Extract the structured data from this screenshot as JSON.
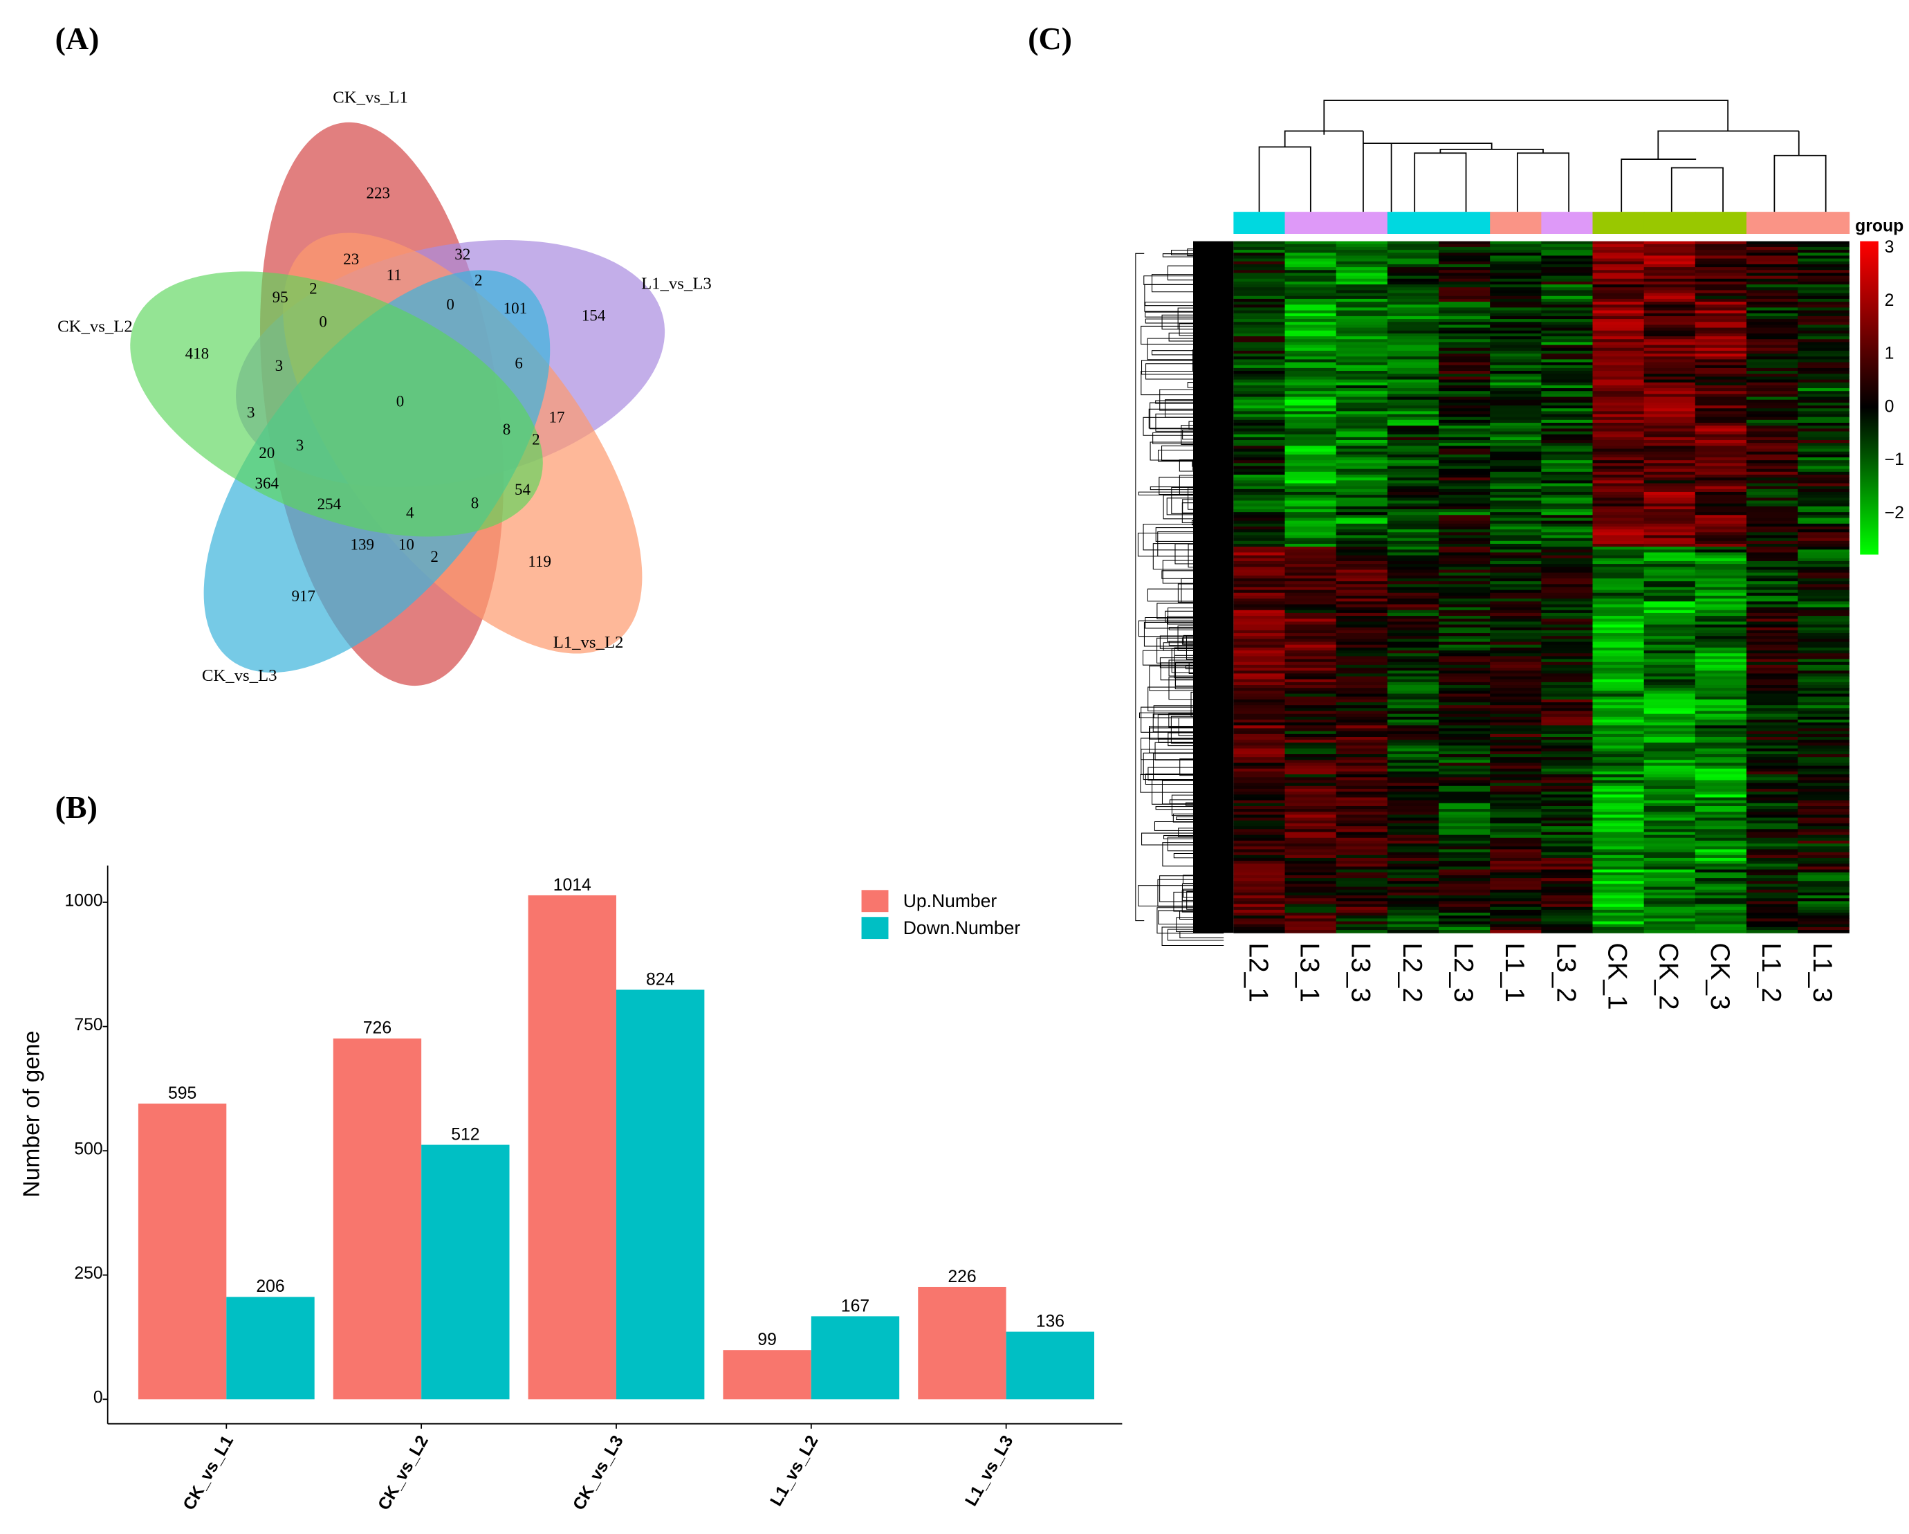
{
  "panels": {
    "a": "(A)",
    "b": "(B)",
    "c": "(C)"
  },
  "venn": {
    "sets": [
      {
        "name": "CK_vs_L1",
        "color": "#d95f5f"
      },
      {
        "name": "L1_vs_L3",
        "color": "#a98be0"
      },
      {
        "name": "L1_vs_L2",
        "color": "#fd9a6e"
      },
      {
        "name": "CK_vs_L3",
        "color": "#3cb4dc"
      },
      {
        "name": "CK_vs_L2",
        "color": "#5ad65a"
      }
    ],
    "counts": [
      "223",
      "154",
      "119",
      "917",
      "418",
      "23",
      "32",
      "11",
      "2",
      "101",
      "95",
      "2",
      "0",
      "0",
      "6",
      "3",
      "0",
      "3",
      "3",
      "8",
      "17",
      "2",
      "20",
      "364",
      "254",
      "54",
      "4",
      "8",
      "139",
      "10",
      "2"
    ]
  },
  "chart_data": [
    {
      "type": "bar",
      "title": "",
      "xlabel": "",
      "ylabel": "Number of gene",
      "categories": [
        "CK_vs_L1",
        "CK_vs_L2",
        "CK_vs_L3",
        "L1_vs_L2",
        "L1_vs_L3"
      ],
      "series": [
        {
          "name": "Up.Number",
          "color": "#f8766d",
          "values": [
            595,
            726,
            1014,
            99,
            226
          ]
        },
        {
          "name": "Down.Number",
          "color": "#00bfc4",
          "values": [
            206,
            512,
            824,
            167,
            136
          ]
        }
      ],
      "yticks": [
        "0",
        "250",
        "500",
        "750",
        "1000"
      ],
      "ytick_values": [
        0,
        250,
        500,
        750,
        1000
      ],
      "ylim": [
        0,
        1070
      ],
      "legend": "top-right",
      "grid": false
    },
    {
      "type": "heatmap",
      "columns": [
        "L2_1",
        "L3_1",
        "L3_3",
        "L2_2",
        "L2_3",
        "L1_1",
        "L3_2",
        "CK_1",
        "CK_2",
        "CK_3",
        "L1_2",
        "L1_3"
      ],
      "column_groups": [
        "L2",
        "L3",
        "L3",
        "L2",
        "L2",
        "L1",
        "L3",
        "CK",
        "CK",
        "CK",
        "L1",
        "L1"
      ],
      "group_colors": {
        "L2": "#00d8e0",
        "L3": "#de99f8",
        "L1": "#fa9486",
        "CK": "#99c800"
      },
      "legend_title": "group",
      "colorbar_ticks": [
        "3",
        "2",
        "1",
        "0",
        "−1",
        "−2"
      ],
      "colorbar_range": [
        -2.8,
        3.1
      ],
      "block_means": {
        "top": [
          -0.5,
          -1.6,
          -1.2,
          -0.9,
          -0.4,
          -0.6,
          -0.7,
          1.3,
          1.2,
          1.0,
          0.3,
          -0.2
        ],
        "bottom": [
          0.9,
          0.6,
          0.3,
          -0.2,
          -0.3,
          0.2,
          0.1,
          -1.6,
          -1.5,
          -1.5,
          -0.1,
          -0.2
        ]
      }
    }
  ]
}
